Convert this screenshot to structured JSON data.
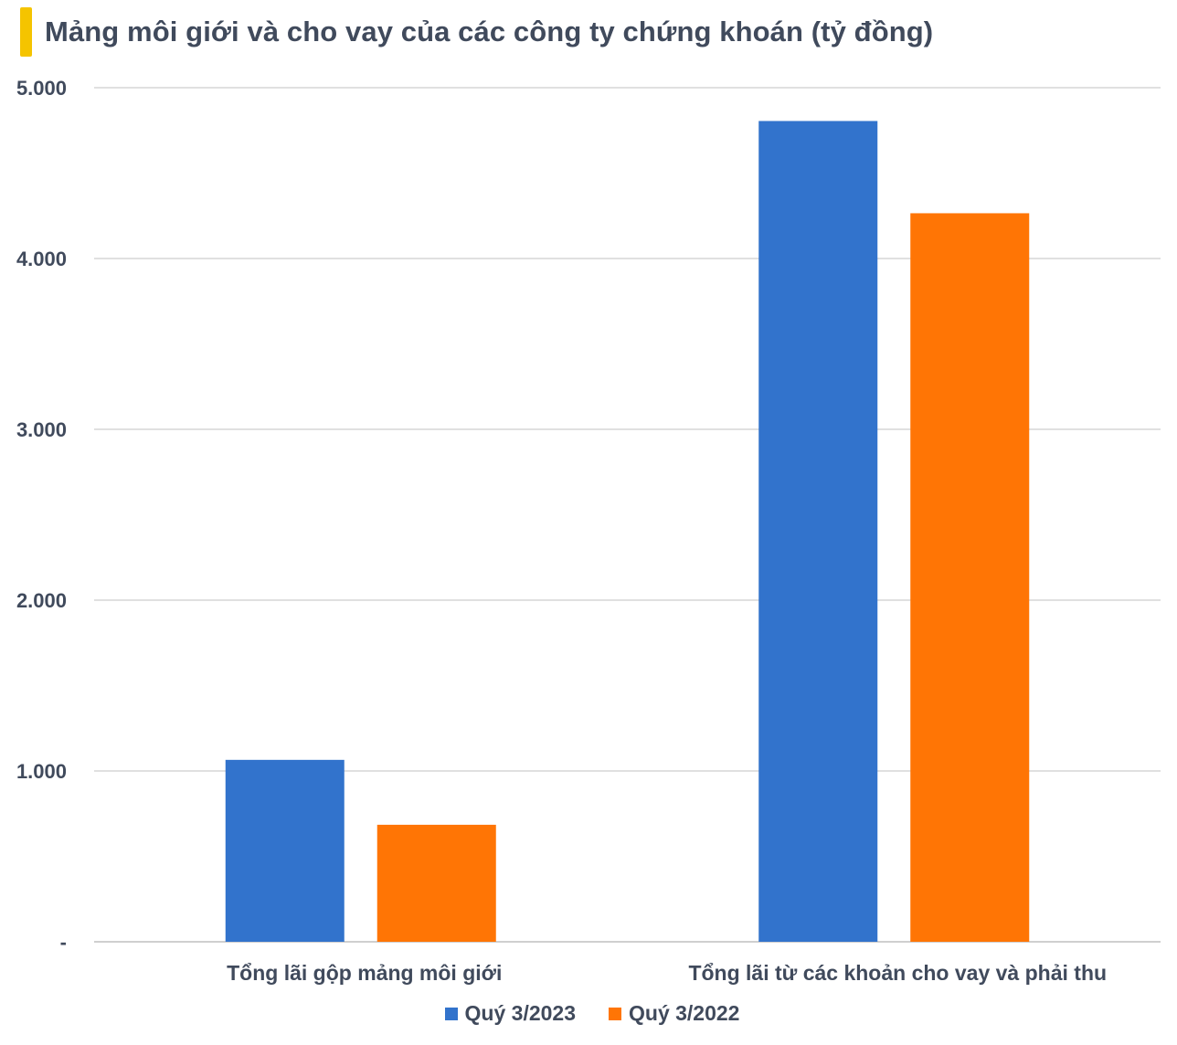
{
  "title": "Mảng môi giới và cho vay của các công ty chứng khoán (tỷ đồng)",
  "colors": {
    "accent": "#f5c400",
    "series_2023": "#3273cc",
    "series_2022": "#ff7505",
    "grid": "#d6d6d6",
    "text": "#404a5c"
  },
  "chart_data": {
    "type": "bar",
    "title": "Mảng môi giới và cho vay của các công ty chứng khoán (tỷ đồng)",
    "categories": [
      "Tổng lãi gộp mảng môi giới",
      "Tổng lãi từ các khoản cho vay và phải thu"
    ],
    "series": [
      {
        "name": "Quý 3/2023",
        "color": "#3273cc",
        "values": [
          1065,
          4805
        ]
      },
      {
        "name": "Quý 3/2022",
        "color": "#ff7505",
        "values": [
          685,
          4265
        ]
      }
    ],
    "ylim": [
      0,
      5000
    ],
    "yticks": [
      0,
      1000,
      2000,
      3000,
      4000,
      5000
    ],
    "ytick_labels": [
      "-",
      "1.000",
      "2.000",
      "3.000",
      "4.000",
      "5.000"
    ],
    "grid": true,
    "legend": "bottom-center"
  }
}
